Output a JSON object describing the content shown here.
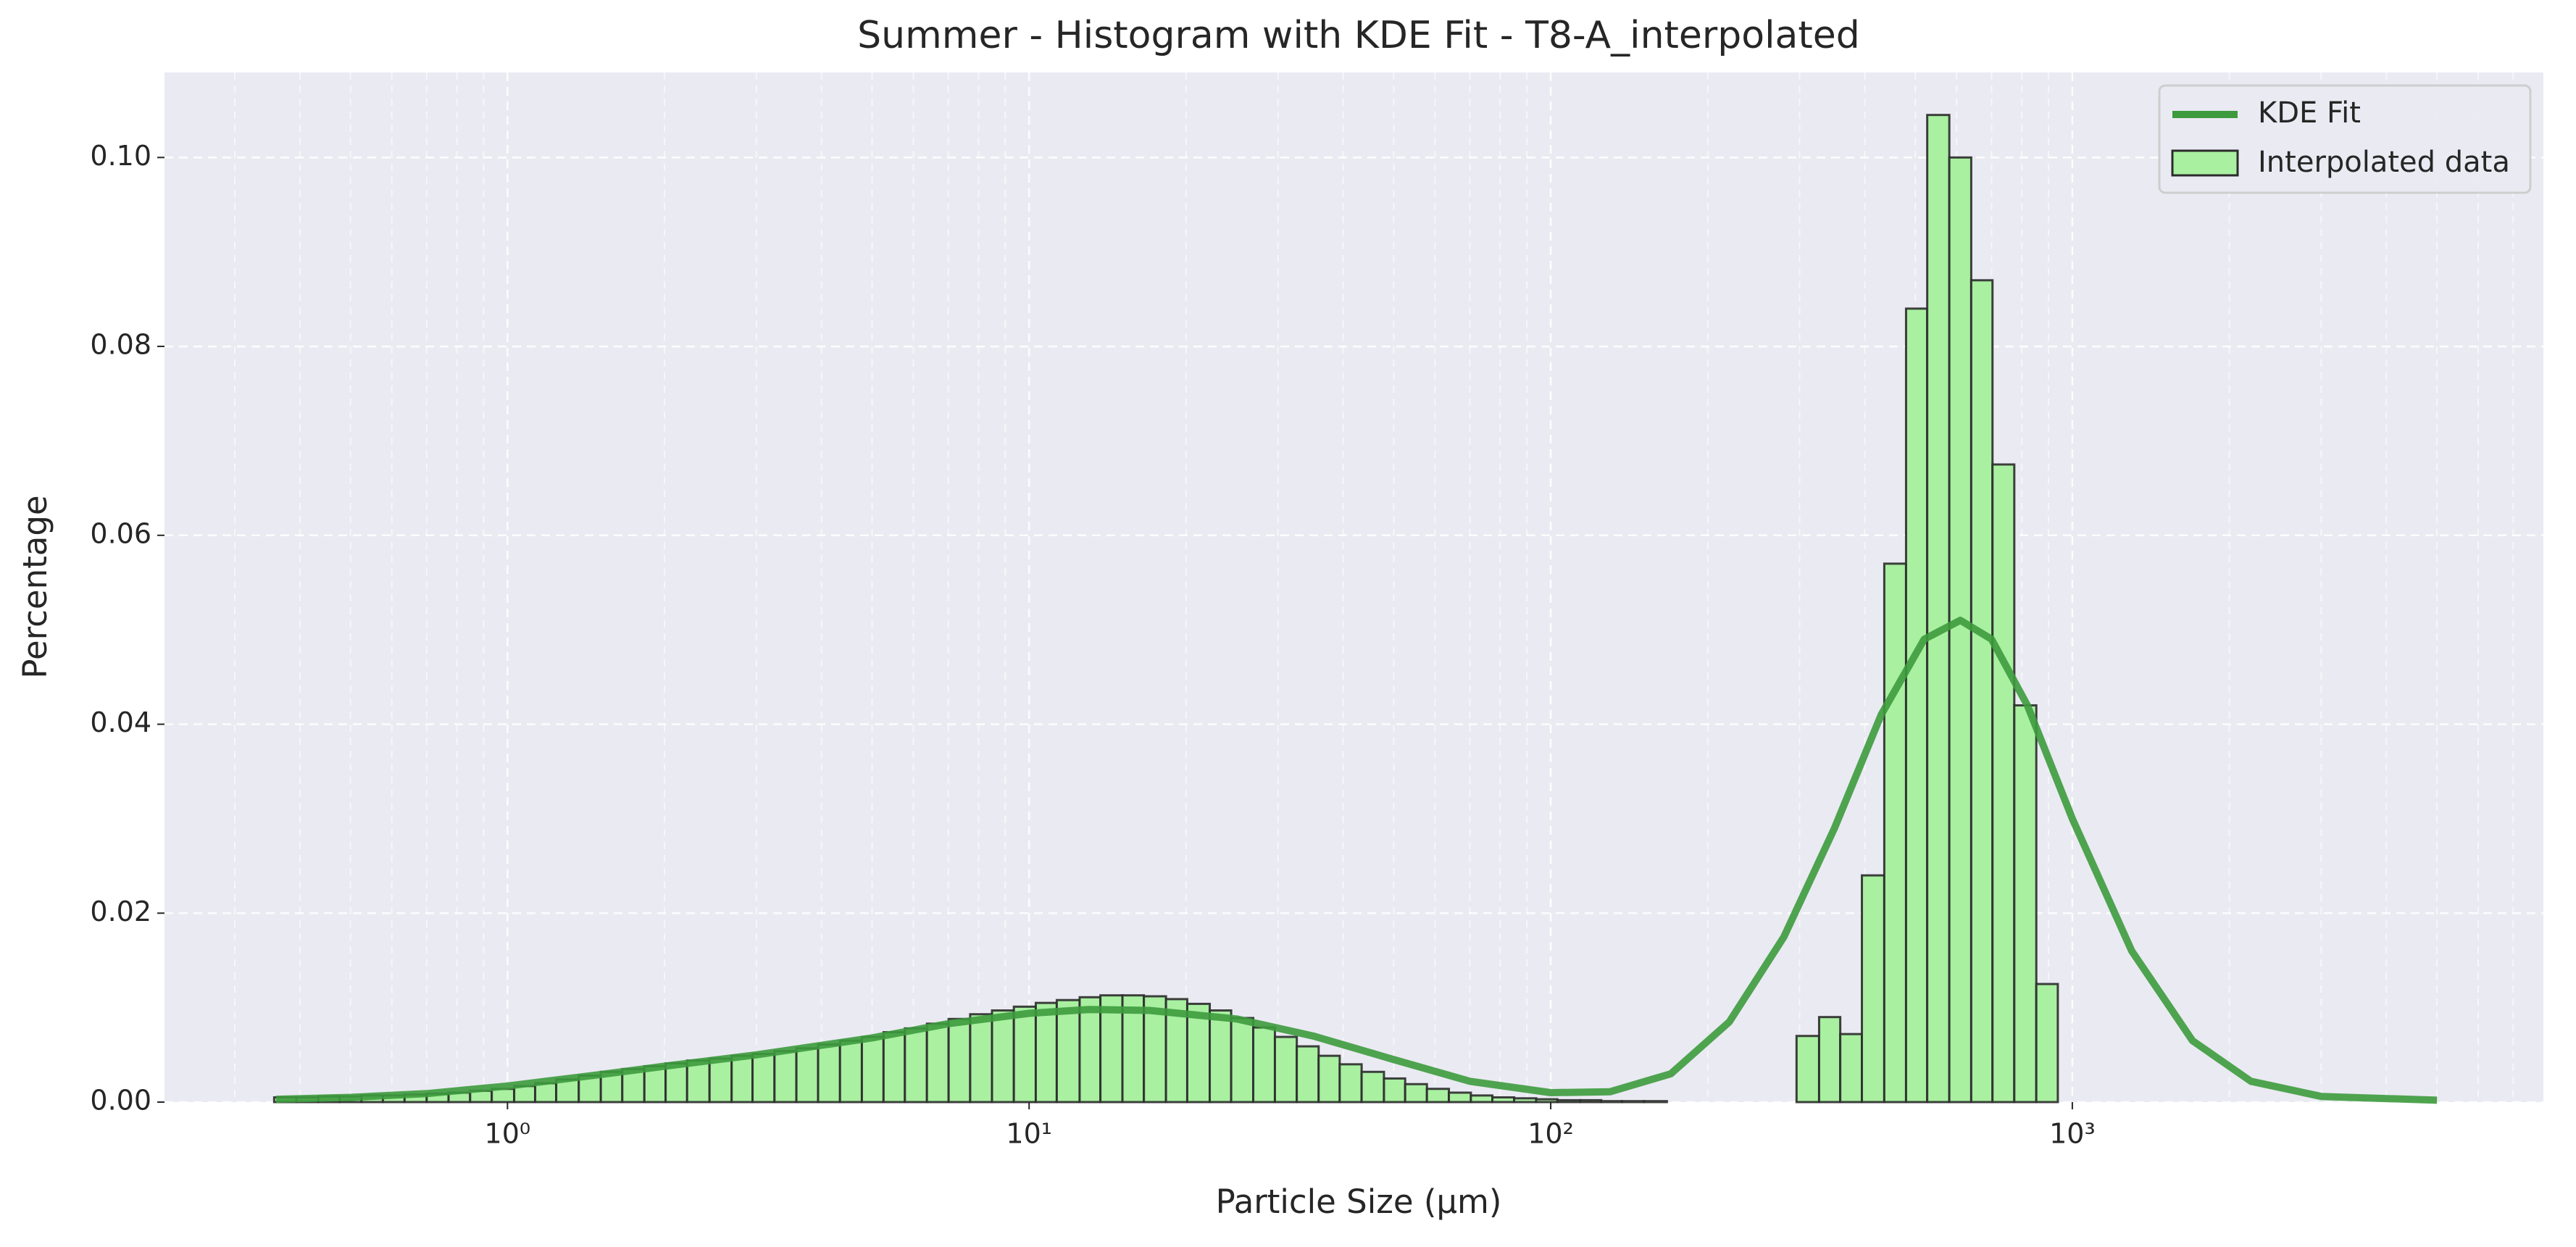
{
  "chart_data": {
    "type": "histogram",
    "title": "Summer - Histogram with KDE Fit - T8-A_interpolated",
    "xlabel": "Particle Size (μm)",
    "ylabel": "Percentage",
    "xscale": "log",
    "name": "Interpolated data",
    "color": "#a9f0a1",
    "edgecolor": "#2b2b2b",
    "bins": [
      0.357,
      0.394,
      0.434,
      0.477,
      0.525,
      0.577,
      0.635,
      0.7,
      0.771,
      0.848,
      0.933,
      1.03,
      1.13,
      1.24,
      1.37,
      1.51,
      1.66,
      1.83,
      2.01,
      2.21,
      2.44,
      2.69,
      2.95,
      3.25,
      3.58,
      3.94,
      4.34,
      4.78,
      5.26,
      5.78,
      6.37,
      7.01,
      7.71,
      8.49,
      9.35,
      10.3,
      11.3,
      12.5,
      13.7,
      15.1,
      16.6,
      18.3,
      20.1,
      22.2,
      24.4,
      26.9,
      29.6,
      32.6,
      35.9,
      39.4,
      43.4,
      47.9,
      52.6,
      57.9,
      63.8,
      70.3,
      77.3,
      85.1,
      93.8,
      103,
      114,
      125,
      137,
      151,
      167,
      184,
      202,
      222,
      245,
      269,
      296,
      327,
      359,
      395,
      436,
      480,
      527,
      581,
      640,
      703,
      774,
      853,
      938
    ],
    "values": [
      0.0005,
      0.0005,
      0.0006,
      0.0006,
      0.0007,
      0.0007,
      0.0008,
      0.0009,
      0.001,
      0.0012,
      0.0014,
      0.0017,
      0.002,
      0.0024,
      0.0028,
      0.0032,
      0.0035,
      0.0038,
      0.0041,
      0.0044,
      0.0046,
      0.0049,
      0.0051,
      0.0054,
      0.0057,
      0.0061,
      0.0065,
      0.0069,
      0.0074,
      0.0078,
      0.0083,
      0.0088,
      0.0093,
      0.0097,
      0.0101,
      0.0105,
      0.0108,
      0.0111,
      0.0113,
      0.0113,
      0.0112,
      0.0109,
      0.0104,
      0.0097,
      0.0089,
      0.0079,
      0.0069,
      0.0059,
      0.0049,
      0.004,
      0.0032,
      0.0025,
      0.0019,
      0.0014,
      0.001,
      0.0007,
      0.0005,
      0.0004,
      0.0003,
      0.0002,
      0.0002,
      0.0001,
      0.0001,
      0.0001,
      0,
      0,
      0,
      0,
      0,
      0,
      0.007,
      0.009,
      0.0072,
      0.024,
      0.057,
      0.084,
      0.1045,
      0.1,
      0.087,
      0.0675,
      0.042,
      0.0125
    ],
    "lines": [
      {
        "type": "line",
        "name": "KDE Fit",
        "color": "#3d9b3d",
        "x": [
          0.36,
          0.5,
          0.7,
          1,
          1.5,
          2,
          3,
          5,
          7,
          10,
          13,
          17,
          25,
          35,
          50,
          70,
          100,
          130,
          170,
          220,
          280,
          350,
          430,
          520,
          610,
          700,
          820,
          1000,
          1300,
          1700,
          2200,
          3000,
          5000
        ],
        "values": [
          0.0003,
          0.0005,
          0.0009,
          0.0017,
          0.0029,
          0.0038,
          0.005,
          0.0068,
          0.0083,
          0.0094,
          0.0098,
          0.0097,
          0.0088,
          0.007,
          0.0045,
          0.0022,
          0.001,
          0.0011,
          0.003,
          0.0085,
          0.0175,
          0.029,
          0.041,
          0.049,
          0.051,
          0.049,
          0.042,
          0.03,
          0.016,
          0.0065,
          0.0022,
          0.0006,
          0.0002
        ]
      }
    ],
    "xlim": [
      0.22,
      8000
    ],
    "ylim": [
      0,
      0.109
    ],
    "xticks": [
      {
        "value": 1,
        "label": "10⁰"
      },
      {
        "value": 10,
        "label": "10¹"
      },
      {
        "value": 100,
        "label": "10²"
      },
      {
        "value": 1000,
        "label": "10³"
      }
    ],
    "yticks": [
      {
        "value": 0,
        "label": "0.00"
      },
      {
        "value": 0.02,
        "label": "0.02"
      },
      {
        "value": 0.04,
        "label": "0.04"
      },
      {
        "value": 0.06,
        "label": "0.06"
      },
      {
        "value": 0.08,
        "label": "0.08"
      },
      {
        "value": 0.1,
        "label": "0.10"
      }
    ],
    "grid": true,
    "legend": "upper right"
  }
}
